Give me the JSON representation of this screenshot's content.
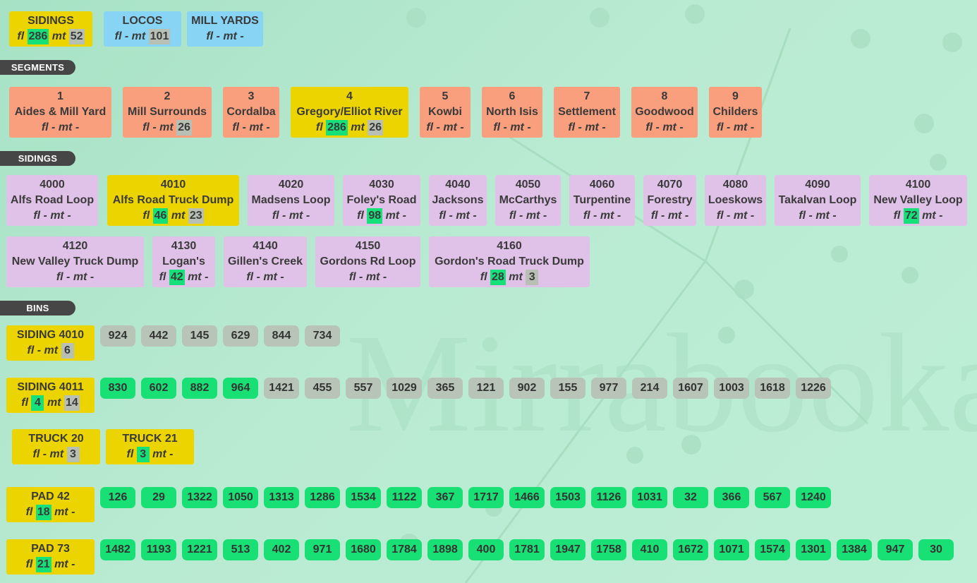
{
  "watermark": "Mirrabooka",
  "summary": [
    {
      "label": "SIDINGS",
      "fl": "286",
      "mt": "52",
      "color": "yellow"
    },
    {
      "label": "LOCOS",
      "fl": "-",
      "mt": "101",
      "color": "blue"
    },
    {
      "label": "MILL YARDS",
      "fl": "-",
      "mt": "-",
      "color": "blue"
    }
  ],
  "section_labels": {
    "segments": "SEGMENTS",
    "sidings": "SIDINGS",
    "bins": "BINS"
  },
  "labels": {
    "fl": "fl",
    "mt": "mt"
  },
  "segments": [
    {
      "num": "1",
      "name": "Aides & Mill Yard",
      "fl": "-",
      "mt": "-"
    },
    {
      "num": "2",
      "name": "Mill Surrounds",
      "fl": "-",
      "mt": "26"
    },
    {
      "num": "3",
      "name": "Cordalba",
      "fl": "-",
      "mt": "-"
    },
    {
      "num": "4",
      "name": "Gregory/Elliot River",
      "fl": "286",
      "mt": "26",
      "highlight": true
    },
    {
      "num": "5",
      "name": "Kowbi",
      "fl": "-",
      "mt": "-"
    },
    {
      "num": "6",
      "name": "North Isis",
      "fl": "-",
      "mt": "-"
    },
    {
      "num": "7",
      "name": "Settlement",
      "fl": "-",
      "mt": "-"
    },
    {
      "num": "8",
      "name": "Goodwood",
      "fl": "-",
      "mt": "-"
    },
    {
      "num": "9",
      "name": "Childers",
      "fl": "-",
      "mt": "-"
    }
  ],
  "sidings": [
    {
      "num": "4000",
      "name": "Alfs Road Loop",
      "fl": "-",
      "mt": "-"
    },
    {
      "num": "4010",
      "name": "Alfs Road Truck Dump",
      "fl": "46",
      "mt": "23",
      "highlight": true
    },
    {
      "num": "4020",
      "name": "Madsens Loop",
      "fl": "-",
      "mt": "-"
    },
    {
      "num": "4030",
      "name": "Foley's Road",
      "fl": "98",
      "mt": "-"
    },
    {
      "num": "4040",
      "name": "Jacksons",
      "fl": "-",
      "mt": "-"
    },
    {
      "num": "4050",
      "name": "McCarthys",
      "fl": "-",
      "mt": "-"
    },
    {
      "num": "4060",
      "name": "Turpentine",
      "fl": "-",
      "mt": "-"
    },
    {
      "num": "4070",
      "name": "Forestry",
      "fl": "-",
      "mt": "-"
    },
    {
      "num": "4080",
      "name": "Loeskows",
      "fl": "-",
      "mt": "-"
    },
    {
      "num": "4090",
      "name": "Takalvan Loop",
      "fl": "-",
      "mt": "-"
    },
    {
      "num": "4100",
      "name": "New Valley Loop",
      "fl": "72",
      "mt": "-"
    },
    {
      "num": "4120",
      "name": "New Valley Truck Dump",
      "fl": "-",
      "mt": "-"
    },
    {
      "num": "4130",
      "name": "Logan's",
      "fl": "42",
      "mt": "-"
    },
    {
      "num": "4140",
      "name": "Gillen's Creek",
      "fl": "-",
      "mt": "-"
    },
    {
      "num": "4150",
      "name": "Gordons Rd Loop",
      "fl": "-",
      "mt": "-"
    },
    {
      "num": "4160",
      "name": "Gordon's Road Truck Dump",
      "fl": "28",
      "mt": "3"
    }
  ],
  "bin_groups": [
    {
      "label": "SIDING 4010",
      "fl": "-",
      "mt": "6",
      "bins": [
        [
          "924",
          "empty"
        ],
        [
          "442",
          "empty"
        ],
        [
          "145",
          "empty"
        ],
        [
          "629",
          "empty"
        ],
        [
          "844",
          "empty"
        ],
        [
          "734",
          "empty"
        ]
      ]
    },
    {
      "label": "SIDING 4011",
      "fl": "4",
      "mt": "14",
      "bins": [
        [
          "830",
          "full"
        ],
        [
          "602",
          "full"
        ],
        [
          "882",
          "full"
        ],
        [
          "964",
          "full"
        ],
        [
          "1421",
          "empty"
        ],
        [
          "455",
          "empty"
        ],
        [
          "557",
          "empty"
        ],
        [
          "1029",
          "empty"
        ],
        [
          "365",
          "empty"
        ],
        [
          "121",
          "empty"
        ],
        [
          "902",
          "empty"
        ],
        [
          "155",
          "empty"
        ],
        [
          "977",
          "empty"
        ],
        [
          "214",
          "empty"
        ],
        [
          "1607",
          "empty"
        ],
        [
          "1003",
          "empty"
        ],
        [
          "1618",
          "empty"
        ],
        [
          "1226",
          "empty"
        ]
      ]
    },
    {
      "label": "PAD 42",
      "fl": "18",
      "mt": "-",
      "bins": [
        [
          "126",
          "full"
        ],
        [
          "29",
          "full"
        ],
        [
          "1322",
          "full"
        ],
        [
          "1050",
          "full"
        ],
        [
          "1313",
          "full"
        ],
        [
          "1286",
          "full"
        ],
        [
          "1534",
          "full"
        ],
        [
          "1122",
          "full"
        ],
        [
          "367",
          "full"
        ],
        [
          "1717",
          "full"
        ],
        [
          "1466",
          "full"
        ],
        [
          "1503",
          "full"
        ],
        [
          "1126",
          "full"
        ],
        [
          "1031",
          "full"
        ],
        [
          "32",
          "full"
        ],
        [
          "366",
          "full"
        ],
        [
          "567",
          "full"
        ],
        [
          "1240",
          "full"
        ]
      ]
    },
    {
      "label": "PAD 73",
      "fl": "21",
      "mt": "-",
      "bins": [
        [
          "1482",
          "full"
        ],
        [
          "1193",
          "full"
        ],
        [
          "1221",
          "full"
        ],
        [
          "513",
          "full"
        ],
        [
          "402",
          "full"
        ],
        [
          "971",
          "full"
        ],
        [
          "1680",
          "full"
        ],
        [
          "1784",
          "full"
        ],
        [
          "1898",
          "full"
        ],
        [
          "400",
          "full"
        ],
        [
          "1781",
          "full"
        ],
        [
          "1947",
          "full"
        ],
        [
          "1758",
          "full"
        ],
        [
          "410",
          "full"
        ],
        [
          "1672",
          "full"
        ],
        [
          "1071",
          "full"
        ],
        [
          "1574",
          "full"
        ],
        [
          "1301",
          "full"
        ],
        [
          "1384",
          "full"
        ],
        [
          "947",
          "full"
        ],
        [
          "30",
          "full"
        ]
      ]
    }
  ],
  "trucks": [
    {
      "label": "TRUCK 20",
      "fl": "-",
      "mt": "3"
    },
    {
      "label": "TRUCK 21",
      "fl": "3",
      "mt": "-"
    }
  ]
}
